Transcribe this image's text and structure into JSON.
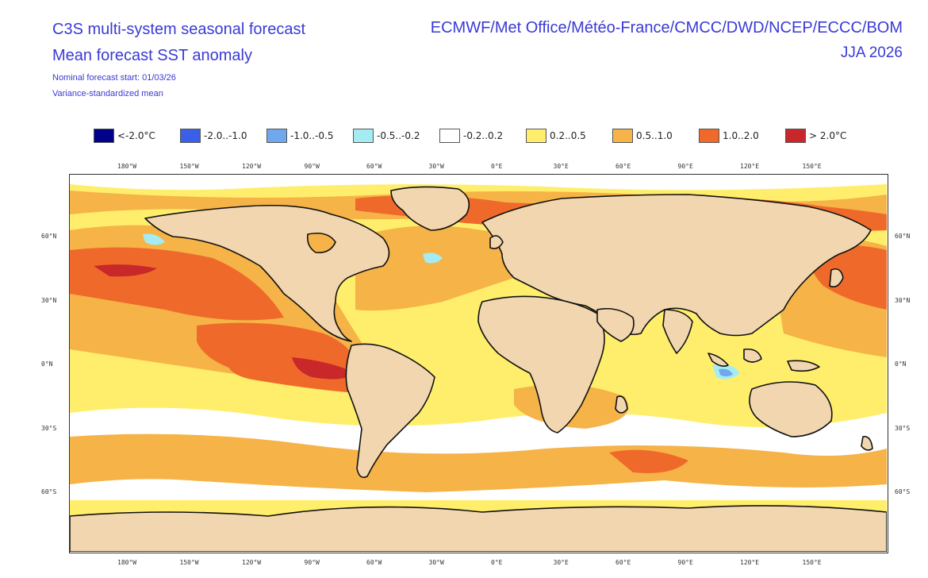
{
  "header": {
    "title_line1": "C3S multi-system seasonal forecast",
    "title_line2": "Mean forecast SST anomaly",
    "start": "Nominal forecast start: 01/03/26",
    "method": "Variance-standardized mean",
    "centres": "ECMWF/Met Office/Météo-France/CMCC/DWD/NCEP/ECCC/BOM",
    "season": "JJA 2026"
  },
  "legend": [
    {
      "label": "<-2.0°C",
      "color": "#00008b"
    },
    {
      "label": "-2.0..-1.0",
      "color": "#3a5fe8"
    },
    {
      "label": "-1.0..-0.5",
      "color": "#6fa8ec"
    },
    {
      "label": "-0.5..-0.2",
      "color": "#a5ecf2"
    },
    {
      "label": "-0.2..0.2",
      "color": "#ffffff"
    },
    {
      "label": "0.2..0.5",
      "color": "#ffee6b"
    },
    {
      "label": "0.5..1.0",
      "color": "#f6b347"
    },
    {
      "label": "1.0..2.0",
      "color": "#ef6a2a"
    },
    {
      "label": "> 2.0°C",
      "color": "#c8282a"
    }
  ],
  "axes": {
    "lon_ticks": [
      "180°W",
      "150°W",
      "120°W",
      "90°W",
      "60°W",
      "30°W",
      "0°E",
      "30°E",
      "60°E",
      "90°E",
      "120°E",
      "150°E"
    ],
    "lat_ticks": [
      "60°N",
      "30°N",
      "0°N",
      "30°S",
      "60°S"
    ]
  },
  "colors": {
    "land": "#f1d6b0",
    "coast": "#111111",
    "ocean_background": "#ffffff"
  }
}
